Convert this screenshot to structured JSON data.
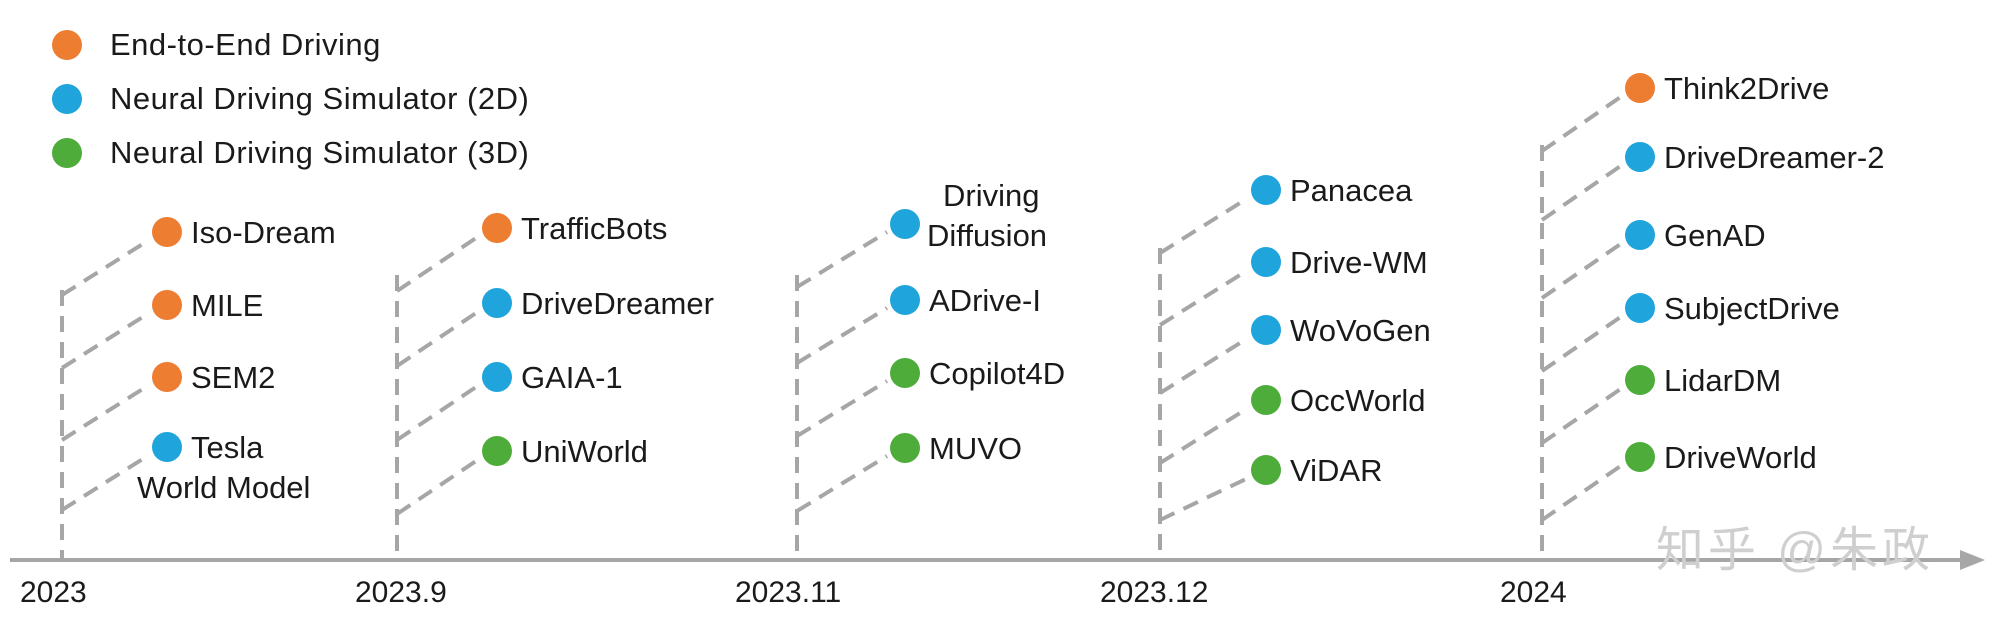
{
  "colors": {
    "end_to_end": "#ED7D31",
    "sim_2d": "#1FA4DC",
    "sim_3d": "#4EAD3A",
    "dash": "#a6a6a6",
    "axis": "#a6a6a6",
    "text": "#1a1a1a"
  },
  "legend": [
    {
      "label": "End-to-End Driving",
      "category": "end_to_end"
    },
    {
      "label": "Neural Driving Simulator (2D)",
      "category": "sim_2d"
    },
    {
      "label": "Neural Driving Simulator (3D)",
      "category": "sim_3d"
    }
  ],
  "timeline": {
    "periods": [
      {
        "label": "2023",
        "items": [
          {
            "name": "Iso-Dream",
            "category": "end_to_end"
          },
          {
            "name": "MILE",
            "category": "end_to_end"
          },
          {
            "name": "SEM2",
            "category": "end_to_end"
          },
          {
            "name": "Tesla\nWorld Model",
            "category": "sim_2d"
          }
        ]
      },
      {
        "label": "2023.9",
        "items": [
          {
            "name": "TrafficBots",
            "category": "end_to_end"
          },
          {
            "name": "DriveDreamer",
            "category": "sim_2d"
          },
          {
            "name": "GAIA-1",
            "category": "sim_2d"
          },
          {
            "name": "UniWorld",
            "category": "sim_3d"
          }
        ]
      },
      {
        "label": "2023.11",
        "items": [
          {
            "name": "Driving\nDiffusion",
            "category": "sim_2d"
          },
          {
            "name": "ADrive-I",
            "category": "sim_2d"
          },
          {
            "name": "Copilot4D",
            "category": "sim_3d"
          },
          {
            "name": "MUVO",
            "category": "sim_3d"
          }
        ]
      },
      {
        "label": "2023.12",
        "items": [
          {
            "name": "Panacea",
            "category": "sim_2d"
          },
          {
            "name": "Drive-WM",
            "category": "sim_2d"
          },
          {
            "name": "WoVoGen",
            "category": "sim_2d"
          },
          {
            "name": "OccWorld",
            "category": "sim_3d"
          },
          {
            "name": "ViDAR",
            "category": "sim_3d"
          }
        ]
      },
      {
        "label": "2024",
        "items": [
          {
            "name": "Think2Drive",
            "category": "end_to_end"
          },
          {
            "name": "DriveDreamer-2",
            "category": "sim_2d"
          },
          {
            "name": "GenAD",
            "category": "sim_2d"
          },
          {
            "name": "SubjectDrive",
            "category": "sim_2d"
          },
          {
            "name": "LidarDM",
            "category": "sim_3d"
          },
          {
            "name": "DriveWorld",
            "category": "sim_3d"
          }
        ]
      }
    ]
  },
  "watermark": "知乎 @朱政"
}
